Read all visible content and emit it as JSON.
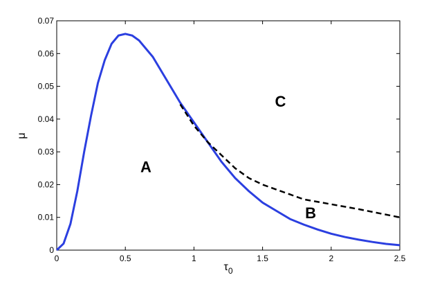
{
  "chart_data": {
    "type": "line",
    "xlabel": {
      "text": "τ",
      "subscript": "0"
    },
    "ylabel": "μ",
    "xlim": [
      0,
      2.5
    ],
    "ylim": [
      0,
      0.07
    ],
    "xticks": [
      0,
      0.5,
      1,
      1.5,
      2,
      2.5
    ],
    "yticks": [
      0,
      0.01,
      0.02,
      0.03,
      0.04,
      0.05,
      0.06,
      0.07
    ],
    "grid": false,
    "series": [
      {
        "color": "#2b3fe0",
        "dash": false,
        "x": [
          0,
          0.05,
          0.1,
          0.15,
          0.2,
          0.25,
          0.3,
          0.35,
          0.4,
          0.45,
          0.5,
          0.55,
          0.6,
          0.7,
          0.8,
          0.9,
          1.0,
          1.1,
          1.2,
          1.3,
          1.4,
          1.5,
          1.6,
          1.7,
          1.8,
          1.9,
          2.0,
          2.1,
          2.2,
          2.3,
          2.4,
          2.5
        ],
        "values": [
          0,
          0.002,
          0.008,
          0.018,
          0.03,
          0.041,
          0.051,
          0.058,
          0.063,
          0.0655,
          0.066,
          0.0655,
          0.064,
          0.059,
          0.052,
          0.045,
          0.039,
          0.033,
          0.027,
          0.022,
          0.018,
          0.0145,
          0.012,
          0.0095,
          0.0078,
          0.0063,
          0.005,
          0.004,
          0.0032,
          0.0025,
          0.0019,
          0.0015
        ]
      },
      {
        "color": "#000000",
        "dash": true,
        "x": [
          0.9,
          1.0,
          1.1,
          1.2,
          1.3,
          1.4,
          1.5,
          1.6,
          1.7,
          1.8,
          2.0,
          2.2,
          2.5
        ],
        "values": [
          0.0445,
          0.038,
          0.033,
          0.029,
          0.025,
          0.022,
          0.02,
          0.0185,
          0.017,
          0.0155,
          0.014,
          0.0125,
          0.01
        ]
      }
    ],
    "annotations": [
      {
        "text": "A",
        "x": 0.65,
        "y": 0.025
      },
      {
        "text": "B",
        "x": 1.85,
        "y": 0.011
      },
      {
        "text": "C",
        "x": 1.63,
        "y": 0.045
      }
    ]
  }
}
